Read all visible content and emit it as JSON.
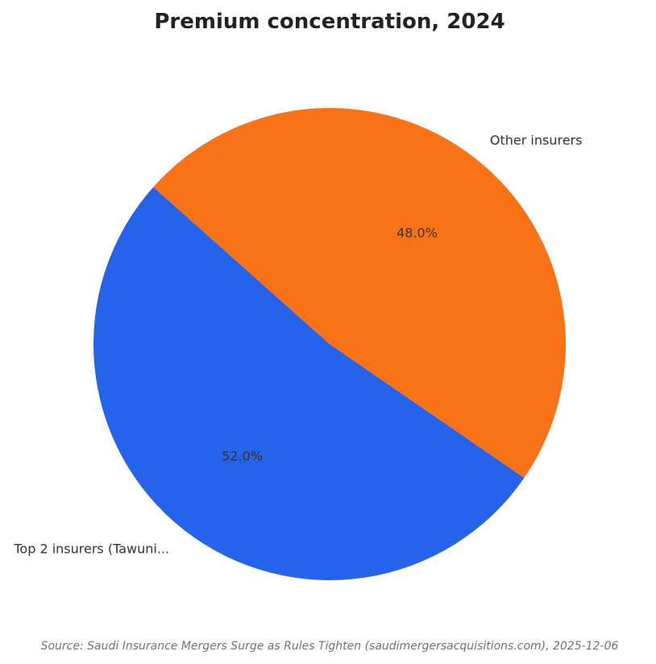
{
  "chart_data": {
    "type": "pie",
    "title": "Premium concentration, 2024",
    "slices": [
      {
        "label": "Top 2 insurers (Tawuni...",
        "value": 52.0,
        "pct_label": "52.0%",
        "color": "#2563eb"
      },
      {
        "label": "Other insurers",
        "value": 48.0,
        "pct_label": "48.0%",
        "color": "#f97316"
      }
    ],
    "start_angle_deg": 138.3,
    "direction": "counterclockwise",
    "source": "Source: Saudi Insurance Mergers Surge as Rules Tighten (saudimergersacquisitions.com), 2025-12-06"
  }
}
